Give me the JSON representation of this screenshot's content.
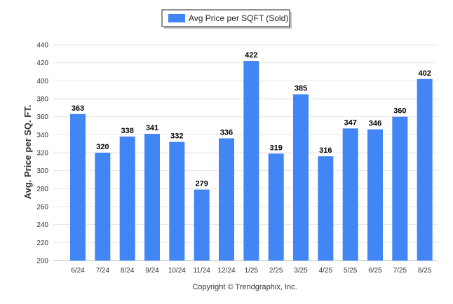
{
  "chart_data": {
    "type": "bar",
    "categories": [
      "6/24",
      "7/24",
      "8/24",
      "9/24",
      "10/24",
      "11/24",
      "12/24",
      "1/25",
      "2/25",
      "3/25",
      "4/25",
      "5/25",
      "6/25",
      "7/25",
      "8/25"
    ],
    "series": [
      {
        "name": "Avg Price per SQFT (Sold)",
        "values": [
          363,
          320,
          338,
          341,
          332,
          279,
          336,
          422,
          319,
          385,
          316,
          347,
          346,
          360,
          402
        ],
        "color": "#4285f4"
      }
    ],
    "data_labels": [
      "363",
      "320",
      "338",
      "341",
      "332",
      "279",
      "336",
      "422",
      "319",
      "385",
      "316",
      "347",
      "346",
      "360",
      "402"
    ],
    "ylabel": "Avg. Price per SQ. FT.",
    "xlabel": "",
    "ylim": [
      200,
      440
    ],
    "yticks": [
      "200",
      "220",
      "240",
      "260",
      "280",
      "300",
      "320",
      "340",
      "360",
      "380",
      "400",
      "420",
      "440"
    ],
    "grid": true,
    "legend_position": "top-center"
  },
  "footer": {
    "credit": "Copyright © Trendgraphix, Inc."
  }
}
